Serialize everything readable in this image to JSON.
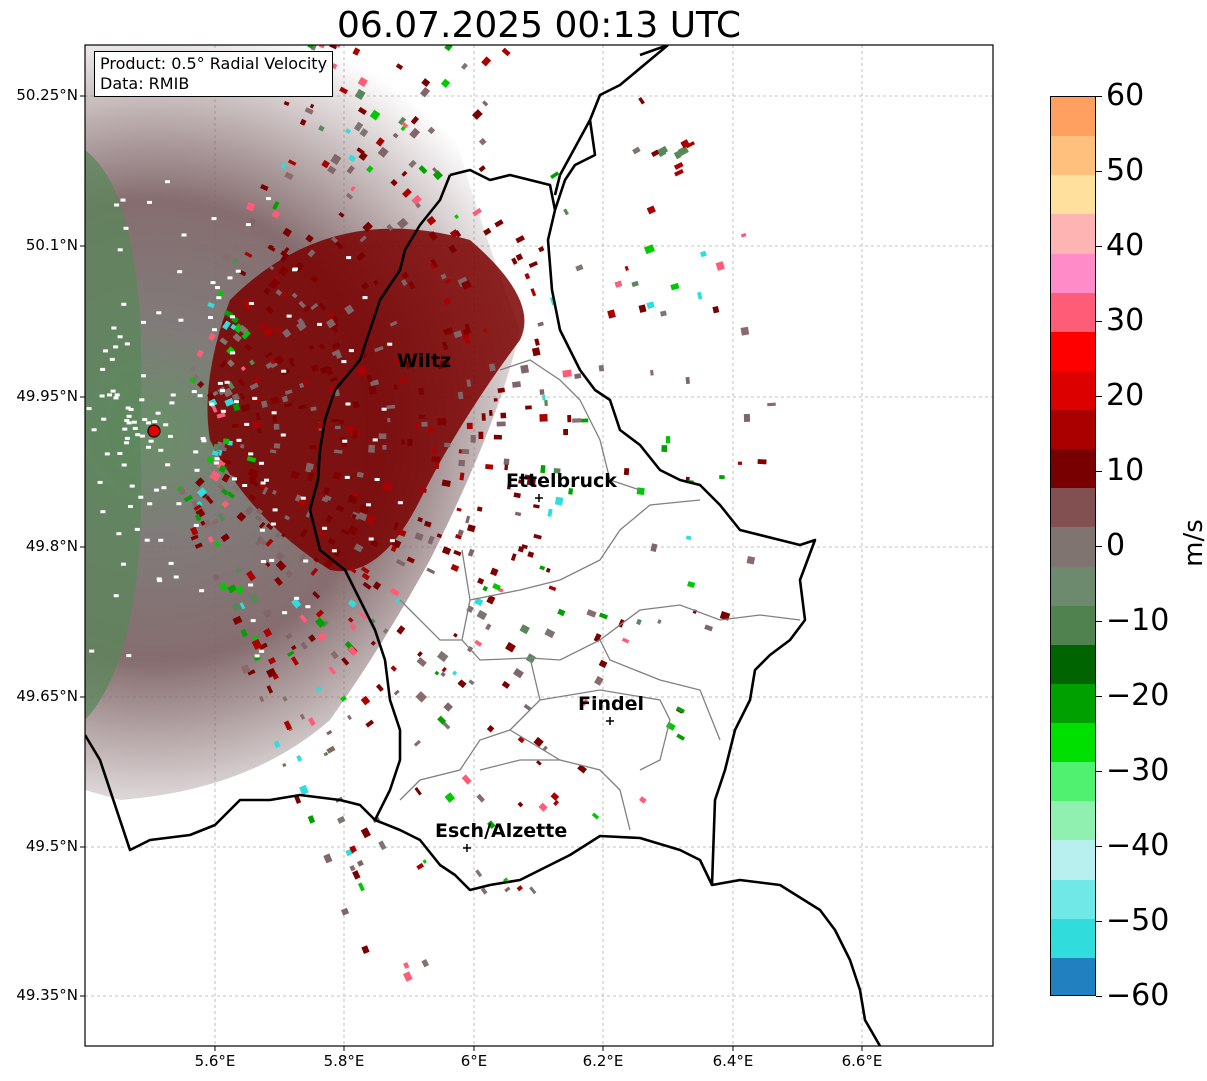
{
  "title": "06.07.2025 00:13 UTC",
  "info": {
    "product": "Product: 0.5° Radial Velocity",
    "data": "Data: RMIB"
  },
  "lat_labels": [
    "50.25°N",
    "50.1°N",
    "49.95°N",
    "49.8°N",
    "49.65°N",
    "49.5°N",
    "49.35°N"
  ],
  "lon_labels": [
    "5.6°E",
    "5.8°E",
    "6°E",
    "6.2°E",
    "6.4°E",
    "6.6°E"
  ],
  "cities": [
    {
      "name": "Wiltz",
      "lon": 5.94,
      "lat": 49.97
    },
    {
      "name": "Ettelbruck",
      "lon": 6.1,
      "lat": 49.85
    },
    {
      "name": "Findel",
      "lon": 6.21,
      "lat": 49.63
    },
    {
      "name": "Esch/Alzette",
      "lon": 5.99,
      "lat": 49.5
    }
  ],
  "radar_site": {
    "lon": 5.505,
    "lat": 49.915
  },
  "colorbar": {
    "label": "m/s",
    "ticks": [
      "60",
      "50",
      "40",
      "30",
      "20",
      "10",
      "0",
      "−10",
      "−20",
      "−30",
      "−40",
      "−50",
      "−60"
    ],
    "range": [
      -60,
      60
    ],
    "colors": [
      "#ffa060",
      "#ffc07e",
      "#ffe09c",
      "#ffb4b4",
      "#ff8cc8",
      "#ff5c78",
      "#ff0000",
      "#dc0000",
      "#aa0000",
      "#780000",
      "#825050",
      "#7f7470",
      "#6e8a6e",
      "#508250",
      "#006400",
      "#00a000",
      "#00e000",
      "#50f070",
      "#90f0b0",
      "#b8f0f0",
      "#70e8e8",
      "#30dcdc",
      "#2080c0"
    ]
  },
  "extent": {
    "lon": [
      5.4,
      6.8
    ],
    "lat": [
      49.3,
      50.3
    ]
  }
}
